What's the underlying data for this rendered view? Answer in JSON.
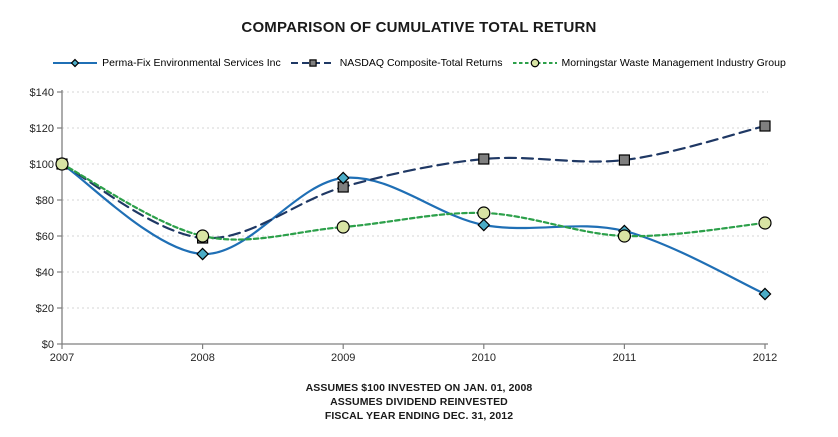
{
  "title": "COMPARISON OF CUMULATIVE TOTAL RETURN",
  "footnotes": [
    "ASSUMES $100 INVESTED ON JAN. 01, 2008",
    "ASSUMES DIVIDEND REINVESTED",
    "FISCAL YEAR ENDING DEC. 31, 2012"
  ],
  "chart_data": {
    "type": "line",
    "title": "COMPARISON OF CUMULATIVE TOTAL RETURN",
    "categories": [
      "2007",
      "2008",
      "2009",
      "2010",
      "2011",
      "2012"
    ],
    "series": [
      {
        "name": "Perma-Fix Environmental Services Inc",
        "values": [
          100,
          50,
          92,
          66,
          63,
          28
        ],
        "color": "#1f6fb5",
        "line_style": "solid",
        "marker": "diamond",
        "marker_fill": "#4bacc6"
      },
      {
        "name": "NASDAQ Composite-Total Returns",
        "values": [
          100,
          59,
          87,
          103,
          102,
          121
        ],
        "color": "#1f3864",
        "line_style": "long-dash",
        "marker": "square",
        "marker_fill": "#7f7f7f"
      },
      {
        "name": "Morningstar Waste Management Industry Group",
        "values": [
          100,
          60,
          65,
          73,
          60,
          67
        ],
        "color": "#2ca04a",
        "line_style": "short-dash",
        "marker": "circle",
        "marker_fill": "#d8e4a4"
      }
    ],
    "ylim": [
      0,
      140
    ],
    "ytick_step": 20,
    "ytick_prefix": "$",
    "xlabel": "",
    "ylabel": "",
    "grid": "horizontal-dotted",
    "legend_position": "top",
    "colors": {
      "grid_line": "#d6d6d6",
      "axis_line": "#7f7f7f",
      "tick_label": "#262626",
      "marker_stroke": "#000000"
    }
  }
}
